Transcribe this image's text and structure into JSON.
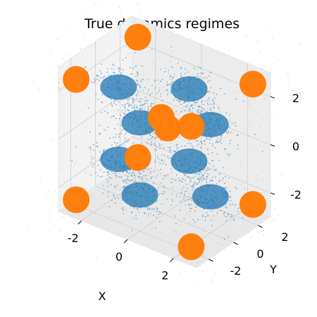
{
  "chart_data": {
    "type": "scatter",
    "projection": "3d",
    "title": "True dynamics regimes",
    "xlabel": "X",
    "ylabel": "Y",
    "zlabel": "",
    "xlim": [
      -3,
      3
    ],
    "ylim": [
      -3,
      3
    ],
    "zlim": [
      -3,
      3
    ],
    "x_ticks": [
      "-2",
      "0",
      "2"
    ],
    "y_ticks": [
      "-2",
      "0",
      "2"
    ],
    "z_ticks": [
      "-2",
      "0",
      "2"
    ],
    "grid": true,
    "series": [
      {
        "color": "#1f77b4",
        "regime": "ring",
        "cluster_centers": [
          [
            2,
            0,
            1.5
          ],
          [
            0,
            2,
            1.5
          ],
          [
            -2,
            0,
            1.5
          ],
          [
            0,
            -2,
            1.5
          ],
          [
            2,
            0,
            -1.5
          ],
          [
            0,
            2,
            -1.5
          ],
          [
            -2,
            0,
            -1.5
          ],
          [
            0,
            -2,
            -1.5
          ]
        ]
      },
      {
        "color": "#ff7f0e",
        "regime": "corners",
        "cluster_centers": [
          [
            2.5,
            2.5,
            2.5
          ],
          [
            -2.5,
            -2.5,
            2.5
          ],
          [
            2.5,
            -2.5,
            2.5
          ],
          [
            -2.5,
            2.5,
            2.5
          ],
          [
            2.5,
            2.5,
            -2.5
          ],
          [
            -2.5,
            -2.5,
            -2.5
          ],
          [
            2.5,
            -2.5,
            -2.5
          ],
          [
            -2.5,
            2.5,
            -2.5
          ],
          [
            0.3,
            -0.3,
            0.8
          ],
          [
            -0.3,
            0.3,
            0.8
          ]
        ]
      }
    ]
  }
}
